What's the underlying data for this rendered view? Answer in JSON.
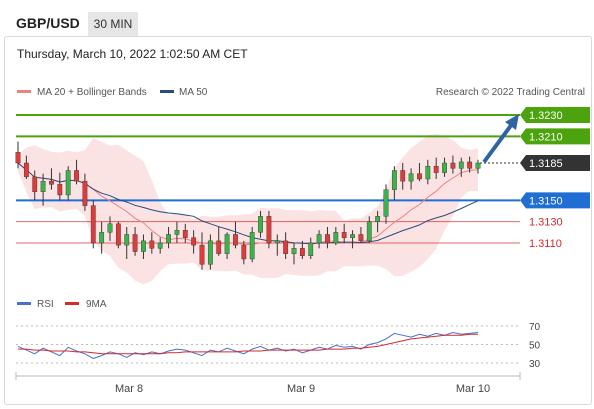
{
  "header": {
    "symbol": "GBP/USD",
    "period": "30 MIN",
    "timestamp": "Thursday, March 10, 2022 1:02:50 AM CET"
  },
  "chart_data": [
    {
      "type": "candlestick",
      "title": "GBP/USD 30 MIN",
      "legend": [
        "MA 20 + Bollinger Bands",
        "MA 50"
      ],
      "credit": "Research © 2022 Trading Central",
      "x_ticks": [
        "Mar 8",
        "Mar 9",
        "Mar 10"
      ],
      "levels": [
        {
          "value": "1.3230",
          "kind": "resistance",
          "color": "#4ca30d",
          "style": "boxed"
        },
        {
          "value": "1.3210",
          "kind": "resistance",
          "color": "#4ca30d",
          "style": "boxed"
        },
        {
          "value": "1.3185",
          "kind": "last price",
          "color": "#333333",
          "style": "boxed"
        },
        {
          "value": "1.3150",
          "kind": "pivot",
          "color": "#1e6ed3",
          "style": "boxed"
        },
        {
          "value": "1.3130",
          "kind": "support",
          "color": "#d42a2a",
          "style": "text"
        },
        {
          "value": "1.3110",
          "kind": "support",
          "color": "#d42a2a",
          "style": "text"
        }
      ],
      "colors": {
        "up": "#3cb34a",
        "down": "#e03a3a",
        "ma20": "#f08080",
        "ma50": "#2c4a7a",
        "band": "#fbd9d9",
        "arrow": "#2e64a3"
      },
      "ohlc_approx": [
        [
          1.3195,
          1.3205,
          1.318,
          1.3185
        ],
        [
          1.3185,
          1.3192,
          1.317,
          1.3172
        ],
        [
          1.3172,
          1.3178,
          1.315,
          1.3158
        ],
        [
          1.3158,
          1.3175,
          1.3145,
          1.3168
        ],
        [
          1.3168,
          1.318,
          1.316,
          1.3165
        ],
        [
          1.3165,
          1.3176,
          1.315,
          1.3155
        ],
        [
          1.3155,
          1.3182,
          1.315,
          1.3178
        ],
        [
          1.3178,
          1.3188,
          1.3165,
          1.3168
        ],
        [
          1.3168,
          1.3175,
          1.314,
          1.3145
        ],
        [
          1.3145,
          1.315,
          1.3105,
          1.311
        ],
        [
          1.311,
          1.313,
          1.31,
          1.312
        ],
        [
          1.312,
          1.3135,
          1.3112,
          1.3128
        ],
        [
          1.3128,
          1.313,
          1.3105,
          1.3108
        ],
        [
          1.3108,
          1.3125,
          1.3095,
          1.3118
        ],
        [
          1.3118,
          1.3125,
          1.3098,
          1.3102
        ],
        [
          1.3102,
          1.3118,
          1.3095,
          1.3112
        ],
        [
          1.3112,
          1.312,
          1.31,
          1.3105
        ],
        [
          1.3105,
          1.3115,
          1.31,
          1.311
        ],
        [
          1.311,
          1.3125,
          1.3105,
          1.3118
        ],
        [
          1.3118,
          1.313,
          1.311,
          1.3122
        ],
        [
          1.3122,
          1.3128,
          1.311,
          1.3115
        ],
        [
          1.3115,
          1.3122,
          1.31,
          1.3108
        ],
        [
          1.3108,
          1.312,
          1.3085,
          1.309
        ],
        [
          1.309,
          1.3118,
          1.3085,
          1.3112
        ],
        [
          1.3112,
          1.3125,
          1.3098,
          1.31
        ],
        [
          1.31,
          1.312,
          1.3095,
          1.3118
        ],
        [
          1.3118,
          1.313,
          1.3105,
          1.3108
        ],
        [
          1.3108,
          1.3112,
          1.309,
          1.3095
        ],
        [
          1.3095,
          1.3125,
          1.3092,
          1.312
        ],
        [
          1.312,
          1.314,
          1.3115,
          1.3135
        ],
        [
          1.3135,
          1.314,
          1.3105,
          1.311
        ],
        [
          1.311,
          1.3118,
          1.3098,
          1.3112
        ],
        [
          1.3112,
          1.312,
          1.3095,
          1.31
        ],
        [
          1.31,
          1.311,
          1.309,
          1.3105
        ],
        [
          1.3105,
          1.3112,
          1.3095,
          1.3098
        ],
        [
          1.3098,
          1.3115,
          1.3095,
          1.311
        ],
        [
          1.311,
          1.3122,
          1.3105,
          1.3118
        ],
        [
          1.3118,
          1.3125,
          1.3105,
          1.311
        ],
        [
          1.311,
          1.3125,
          1.3108,
          1.312
        ],
        [
          1.312,
          1.3128,
          1.311,
          1.3115
        ],
        [
          1.3115,
          1.3122,
          1.3105,
          1.3118
        ],
        [
          1.3118,
          1.3125,
          1.311,
          1.3112
        ],
        [
          1.3112,
          1.3135,
          1.311,
          1.313
        ],
        [
          1.313,
          1.314,
          1.312,
          1.3135
        ],
        [
          1.3135,
          1.3165,
          1.3128,
          1.316
        ],
        [
          1.316,
          1.3182,
          1.315,
          1.3178
        ],
        [
          1.3178,
          1.3185,
          1.316,
          1.3168
        ],
        [
          1.3168,
          1.318,
          1.316,
          1.3175
        ],
        [
          1.3175,
          1.3185,
          1.3168,
          1.317
        ],
        [
          1.317,
          1.3188,
          1.3165,
          1.3182
        ],
        [
          1.3182,
          1.319,
          1.317,
          1.3176
        ],
        [
          1.3176,
          1.319,
          1.3172,
          1.3185
        ],
        [
          1.3185,
          1.3192,
          1.3175,
          1.318
        ],
        [
          1.318,
          1.319,
          1.3172,
          1.3186
        ],
        [
          1.3186,
          1.3191,
          1.3176,
          1.318
        ],
        [
          1.318,
          1.3188,
          1.3175,
          1.3185
        ]
      ]
    },
    {
      "type": "line",
      "legend": [
        "RSI",
        "9MA"
      ],
      "y_ticks": [
        70,
        50,
        30
      ],
      "series": [
        {
          "name": "RSI",
          "color": "#4a6fd1",
          "values": [
            48,
            44,
            40,
            46,
            42,
            38,
            47,
            43,
            40,
            35,
            38,
            42,
            40,
            36,
            41,
            39,
            42,
            40,
            43,
            45,
            44,
            41,
            38,
            44,
            42,
            46,
            43,
            40,
            45,
            48,
            44,
            46,
            43,
            45,
            41,
            44,
            47,
            45,
            49,
            47,
            48,
            45,
            50,
            52,
            56,
            62,
            60,
            58,
            61,
            59,
            62,
            60,
            63,
            61,
            62,
            63
          ]
        },
        {
          "name": "9MA",
          "color": "#d42a2a",
          "values": [
            45,
            45,
            44,
            44,
            43,
            43,
            43,
            42,
            42,
            41,
            40,
            40,
            40,
            40,
            40,
            40,
            40,
            40,
            41,
            41,
            42,
            42,
            42,
            42,
            42,
            42,
            42,
            43,
            43,
            43,
            44,
            44,
            44,
            44,
            44,
            44,
            44,
            45,
            45,
            45,
            46,
            46,
            47,
            48,
            50,
            52,
            54,
            56,
            57,
            58,
            59,
            60,
            60,
            60,
            61,
            61
          ]
        }
      ]
    }
  ]
}
